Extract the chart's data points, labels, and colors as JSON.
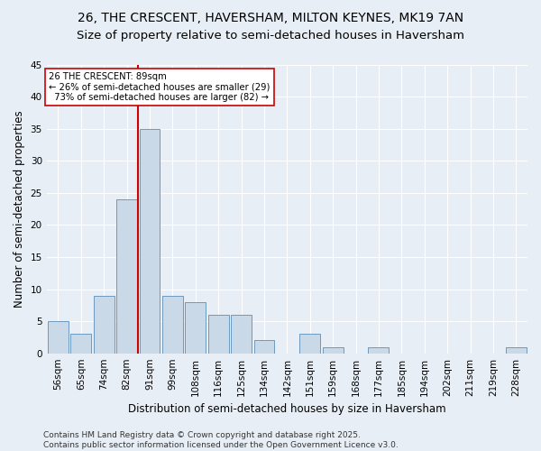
{
  "title1": "26, THE CRESCENT, HAVERSHAM, MILTON KEYNES, MK19 7AN",
  "title2": "Size of property relative to semi-detached houses in Haversham",
  "xlabel": "Distribution of semi-detached houses by size in Haversham",
  "ylabel": "Number of semi-detached properties",
  "categories": [
    "56sqm",
    "65sqm",
    "74sqm",
    "82sqm",
    "91sqm",
    "99sqm",
    "108sqm",
    "116sqm",
    "125sqm",
    "134sqm",
    "142sqm",
    "151sqm",
    "159sqm",
    "168sqm",
    "177sqm",
    "185sqm",
    "194sqm",
    "202sqm",
    "211sqm",
    "219sqm",
    "228sqm"
  ],
  "values": [
    5,
    3,
    9,
    24,
    35,
    9,
    8,
    6,
    6,
    2,
    0,
    3,
    1,
    0,
    1,
    0,
    0,
    0,
    0,
    0,
    1
  ],
  "bar_color": "#c9d9e8",
  "bar_edge_color": "#5b8db8",
  "vline_x_index": 4,
  "vline_color": "#cc0000",
  "annotation_line1": "26 THE CRESCENT: 89sqm",
  "annotation_line2": "← 26% of semi-detached houses are smaller (29)",
  "annotation_line3": "  73% of semi-detached houses are larger (82) →",
  "annotation_box_color": "#ffffff",
  "annotation_box_edge": "#cc0000",
  "ylim": [
    0,
    45
  ],
  "yticks": [
    0,
    5,
    10,
    15,
    20,
    25,
    30,
    35,
    40,
    45
  ],
  "footer": "Contains HM Land Registry data © Crown copyright and database right 2025.\nContains public sector information licensed under the Open Government Licence v3.0.",
  "bg_color": "#e8eef5",
  "plot_bg_color": "#e8eef5",
  "title_fontsize": 10,
  "subtitle_fontsize": 9.5,
  "tick_fontsize": 7.5,
  "label_fontsize": 8.5,
  "footer_fontsize": 6.5
}
